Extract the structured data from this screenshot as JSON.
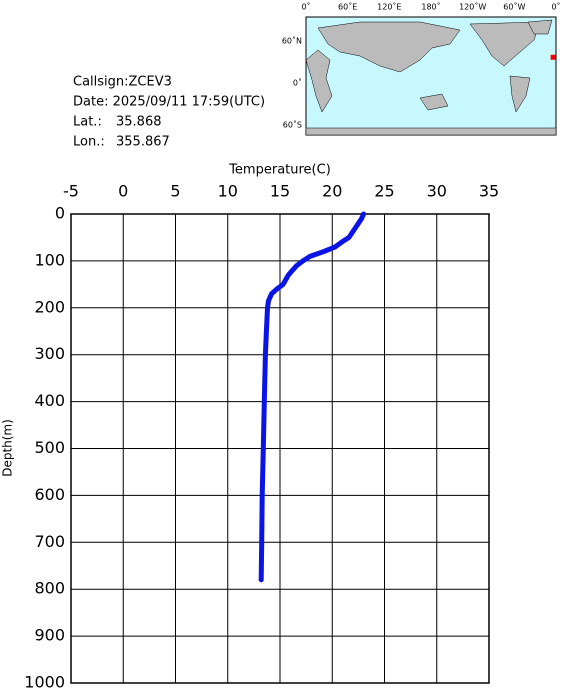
{
  "info": {
    "callsign": "Callsign:ZCEV3",
    "date": "Date:  2025/09/11 17:59(UTC)",
    "lat_label": "Lat.:",
    "lat": 35.868,
    "lon_label": "Lon.:",
    "lon": 355.867
  },
  "map": {
    "lon_labels": [
      "0˚",
      "60˚E",
      "120˚E",
      "180˚",
      "120˚W",
      "60˚W",
      "0˚"
    ],
    "lat_labels": [
      "60˚N",
      "0˚",
      "60˚S"
    ]
  },
  "chart_data": {
    "type": "line",
    "x_label": "Temperature(C)",
    "y_label": "Depth(m)",
    "xlim": [
      -5,
      35
    ],
    "xticks": [
      -5,
      0,
      5,
      10,
      15,
      20,
      25,
      30,
      35
    ],
    "ylim": [
      0,
      1000
    ],
    "yticks": [
      0,
      100,
      200,
      300,
      400,
      500,
      600,
      700,
      800,
      900,
      1000
    ],
    "y_inverted": true,
    "grid": true,
    "series": [
      {
        "color": "#0a14e6",
        "x": [
          23.0,
          22.8,
          22.5,
          22.2,
          21.9,
          21.6,
          20.9,
          20.3,
          19.2,
          17.9,
          17.2,
          16.6,
          16.2,
          15.8,
          15.3,
          14.7,
          14.2,
          13.9,
          13.8,
          13.7,
          13.6,
          13.5,
          13.4,
          13.3,
          13.25,
          13.2
        ],
        "values": [
          0,
          10,
          20,
          30,
          40,
          50,
          60,
          70,
          80,
          90,
          100,
          110,
          120,
          130,
          150,
          160,
          170,
          185,
          200,
          250,
          300,
          400,
          500,
          600,
          700,
          780
        ]
      }
    ]
  }
}
